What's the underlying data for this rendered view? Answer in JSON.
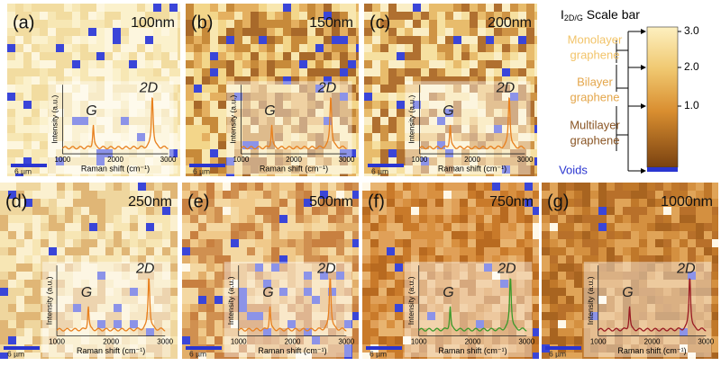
{
  "panels": [
    {
      "label": "(a)",
      "thickness": "100nm",
      "scale_bar": "6 µm",
      "spectrum_color": "#e8801e"
    },
    {
      "label": "(b)",
      "thickness": "150nm",
      "scale_bar": "6 µm",
      "spectrum_color": "#e8801e"
    },
    {
      "label": "(c)",
      "thickness": "200nm",
      "scale_bar": "6 µm",
      "spectrum_color": "#e8801e"
    },
    {
      "label": "(d)",
      "thickness": "250nm",
      "scale_bar": "6 µm",
      "spectrum_color": "#e8801e"
    },
    {
      "label": "(e)",
      "thickness": "500nm",
      "scale_bar": "6 µm",
      "spectrum_color": "#e8801e"
    },
    {
      "label": "(f)",
      "thickness": "750nm",
      "scale_bar": "6 µm",
      "spectrum_color": "#3a9a2a"
    },
    {
      "label": "(g)",
      "thickness": "1000nm",
      "scale_bar": "6 µm",
      "spectrum_color": "#9a1a22"
    }
  ],
  "inset": {
    "y_label": "Intensity (a.u.)",
    "x_label": "Raman shift  (cm⁻¹)",
    "x_ticks": [
      "1000",
      "2000",
      "3000"
    ],
    "peaks": [
      "G",
      "2D"
    ]
  },
  "legend": {
    "symbol": "I",
    "subscript": "2D/G",
    "title": " Scale bar",
    "ticks": [
      "3.0",
      "2.0",
      "1.0"
    ],
    "classes": [
      {
        "lines": [
          "Monolayer",
          "graphene"
        ],
        "color": "#f2c46a"
      },
      {
        "lines": [
          "Bilayer",
          "graphene"
        ],
        "color": "#e4a64a"
      },
      {
        "lines": [
          "Multilayer",
          "graphene"
        ],
        "color": "#8a5524"
      },
      {
        "lines": [
          "Voids"
        ],
        "color": "#2a35d0"
      }
    ]
  }
}
